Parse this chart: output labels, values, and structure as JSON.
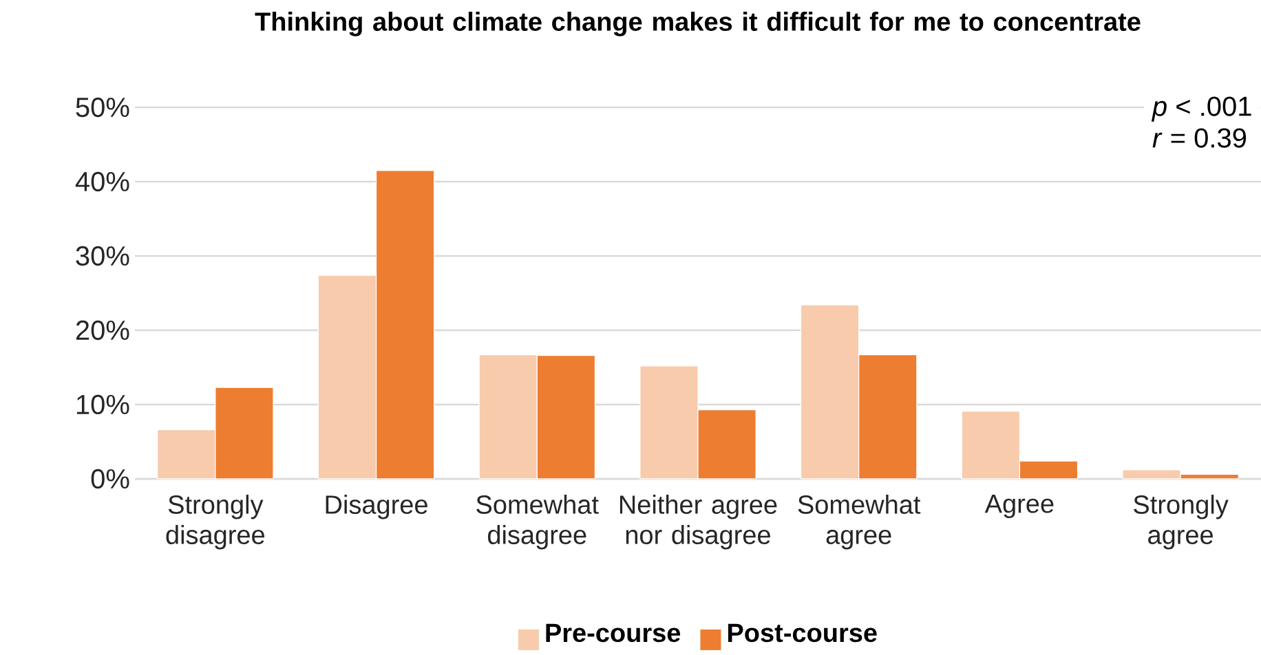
{
  "chart_data": {
    "type": "bar",
    "title": "Thinking about climate change makes it difficult for me to concentrate",
    "categories": [
      "Strongly disagree",
      "Disagree",
      "Somewhat disagree",
      "Neither agree nor disagree",
      "Somewhat agree",
      "Agree",
      "Strongly agree"
    ],
    "series": [
      {
        "name": "Pre-course",
        "color": "#f7cbac",
        "values": [
          6.6,
          27.4,
          16.7,
          15.2,
          23.4,
          9.1,
          1.2
        ]
      },
      {
        "name": "Post-course",
        "color": "#ed7d31",
        "values": [
          12.3,
          41.5,
          16.6,
          9.3,
          16.7,
          2.4,
          0.6
        ]
      }
    ],
    "ylim": [
      0,
      50
    ],
    "yticks": [
      {
        "value": 0,
        "label": "0%"
      },
      {
        "value": 10,
        "label": "10%"
      },
      {
        "value": 20,
        "label": "20%"
      },
      {
        "value": 30,
        "label": "30%"
      },
      {
        "value": 40,
        "label": "40%"
      },
      {
        "value": 50,
        "label": "50%"
      }
    ],
    "grid": "y",
    "legend": "bottom",
    "annotations": [
      "*p* < .001",
      "*r* = 0.39"
    ]
  }
}
